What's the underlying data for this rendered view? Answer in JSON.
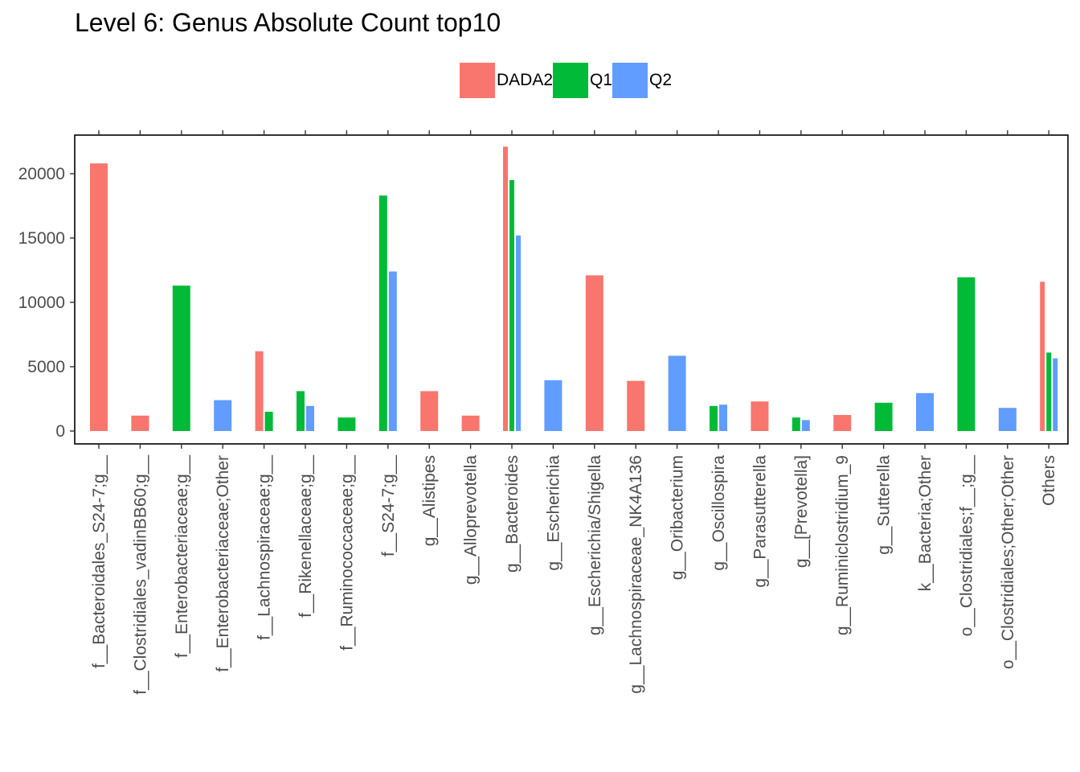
{
  "chart_data": {
    "type": "bar",
    "title": "Level 6: Genus Absolute Count top10",
    "xlabel": "",
    "ylabel": "",
    "ylim": [
      -800,
      23000
    ],
    "yticks": [
      0,
      5000,
      10000,
      15000,
      20000
    ],
    "legend_position": "top",
    "categories": [
      "f__Bacteroidales_S24-7;g__",
      "f__Clostridiales_vadinBB60;g__",
      "f__Enterobacteriaceae;g__",
      "f__Enterobacteriaceae;Other",
      "f__Lachnospiraceae;g__",
      "f__Rikenellaceae;g__",
      "f__Ruminococcaceae;g__",
      "f__S24-7;g__",
      "g__Alistipes",
      "g__Alloprevotella",
      "g__Bacteroides",
      "g__Escherichia",
      "g__Escherichia/Shigella",
      "g__Lachnospiraceae_NK4A136",
      "g__Oribacterium",
      "g__Oscillospira",
      "g__Parasutterella",
      "g__[Prevotella]",
      "g__Ruminiclostridium_9",
      "g__Sutterella",
      "k__Bacteria;Other",
      "o__Clostridiales;f__;g__",
      "o__Clostridiales;Other;Other",
      "Others"
    ],
    "series": [
      {
        "name": "DADA2",
        "color": "#F8766D",
        "values": [
          20800,
          1200,
          null,
          null,
          6200,
          null,
          null,
          null,
          3100,
          1200,
          22100,
          null,
          12100,
          3900,
          null,
          null,
          2300,
          null,
          1250,
          null,
          null,
          null,
          null,
          11600
        ]
      },
      {
        "name": "Q1",
        "color": "#00BA38",
        "values": [
          null,
          null,
          11300,
          null,
          1500,
          3100,
          1050,
          18300,
          null,
          null,
          19500,
          null,
          null,
          null,
          null,
          1950,
          null,
          1050,
          null,
          2200,
          null,
          11950,
          null,
          6100
        ]
      },
      {
        "name": "Q2",
        "color": "#619CFF",
        "values": [
          null,
          null,
          null,
          2400,
          null,
          1950,
          null,
          12400,
          null,
          null,
          15200,
          3950,
          null,
          null,
          5850,
          2050,
          null,
          850,
          null,
          null,
          2950,
          null,
          1800,
          5650
        ]
      }
    ]
  }
}
